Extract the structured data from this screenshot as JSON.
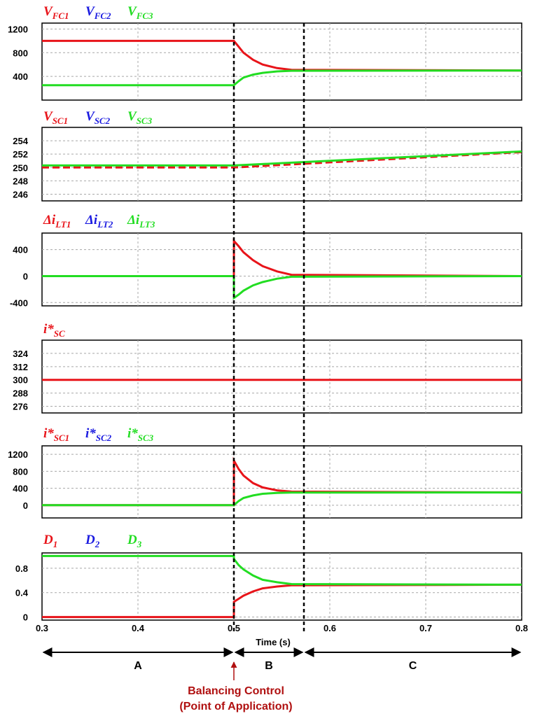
{
  "colors": {
    "red": "#e8141a",
    "blue": "#1a1ae0",
    "green": "#22dd22",
    "dark_red": "#b01010"
  },
  "chart_data": [
    {
      "type": "line",
      "legend": [
        {
          "sym": "V",
          "sub": "FC1",
          "color": "red"
        },
        {
          "sym": "V",
          "sub": "FC2",
          "color": "blue"
        },
        {
          "sym": "V",
          "sub": "FC3",
          "color": "green"
        }
      ],
      "ylim": [
        0,
        1300
      ],
      "yticks": [
        "1200",
        "800",
        "400"
      ],
      "ytick_values": [
        1200,
        800,
        400
      ],
      "series": [
        {
          "color": "red",
          "x": [
            0.3,
            0.5,
            0.505,
            0.51,
            0.52,
            0.53,
            0.545,
            0.56,
            0.8
          ],
          "y": [
            1000,
            1000,
            900,
            800,
            680,
            600,
            540,
            510,
            500
          ]
        },
        {
          "color": "green",
          "x": [
            0.3,
            0.5,
            0.505,
            0.51,
            0.52,
            0.53,
            0.545,
            0.56,
            0.8
          ],
          "y": [
            250,
            250,
            320,
            380,
            430,
            460,
            485,
            495,
            500
          ]
        }
      ]
    },
    {
      "type": "line",
      "legend": [
        {
          "sym": "V",
          "sub": "SC1",
          "color": "red"
        },
        {
          "sym": "V",
          "sub": "SC2",
          "color": "blue"
        },
        {
          "sym": "V",
          "sub": "SC3",
          "color": "green"
        }
      ],
      "ylim": [
        245,
        256
      ],
      "yticks": [
        "254",
        "252",
        "250",
        "248",
        "246"
      ],
      "ytick_values": [
        254,
        252,
        250,
        248,
        246
      ],
      "series": [
        {
          "color": "red",
          "dashed": true,
          "x": [
            0.3,
            0.5,
            0.8
          ],
          "y": [
            250,
            250,
            252.3
          ]
        },
        {
          "color": "green",
          "x": [
            0.3,
            0.5,
            0.8
          ],
          "y": [
            250.3,
            250.3,
            252.4
          ]
        }
      ]
    },
    {
      "type": "line",
      "legend": [
        {
          "sym": "Δi",
          "sub": "LT1",
          "color": "red"
        },
        {
          "sym": "Δi",
          "sub": "LT2",
          "color": "blue"
        },
        {
          "sym": "Δi",
          "sub": "LT3",
          "color": "green"
        }
      ],
      "ylim": [
        -450,
        650
      ],
      "yticks": [
        "400",
        "0",
        "-400"
      ],
      "ytick_values": [
        400,
        0,
        -400
      ],
      "series": [
        {
          "color": "red",
          "x": [
            0.3,
            0.5,
            0.5001,
            0.505,
            0.51,
            0.52,
            0.53,
            0.545,
            0.56,
            0.8
          ],
          "y": [
            0,
            0,
            530,
            450,
            360,
            240,
            150,
            70,
            20,
            0
          ]
        },
        {
          "color": "green",
          "x": [
            0.3,
            0.5,
            0.5001,
            0.505,
            0.51,
            0.52,
            0.53,
            0.545,
            0.56,
            0.8
          ],
          "y": [
            0,
            0,
            -330,
            -280,
            -220,
            -140,
            -90,
            -40,
            -10,
            0
          ]
        }
      ]
    },
    {
      "type": "line",
      "legend": [
        {
          "sym": "i*",
          "sub": "SC",
          "color": "red"
        }
      ],
      "ylim": [
        270,
        336
      ],
      "yticks": [
        "324",
        "312",
        "300",
        "288",
        "276"
      ],
      "ytick_values": [
        324,
        312,
        300,
        288,
        276
      ],
      "series": [
        {
          "color": "red",
          "x": [
            0.3,
            0.8
          ],
          "y": [
            300,
            300
          ]
        }
      ]
    },
    {
      "type": "line",
      "legend": [
        {
          "sym": "i*",
          "sub": "SC1",
          "color": "red"
        },
        {
          "sym": "i*",
          "sub": "SC2",
          "color": "blue"
        },
        {
          "sym": "i*",
          "sub": "SC3",
          "color": "green"
        }
      ],
      "ylim": [
        -300,
        1400
      ],
      "yticks": [
        "1200",
        "800",
        "400",
        "0"
      ],
      "ytick_values": [
        1200,
        800,
        400,
        0
      ],
      "series": [
        {
          "color": "red",
          "x": [
            0.3,
            0.5,
            0.5001,
            0.505,
            0.51,
            0.52,
            0.53,
            0.545,
            0.56,
            0.8
          ],
          "y": [
            0,
            0,
            1050,
            850,
            700,
            520,
            420,
            350,
            320,
            300
          ]
        },
        {
          "color": "green",
          "x": [
            0.3,
            0.5,
            0.505,
            0.51,
            0.52,
            0.53,
            0.545,
            0.56,
            0.8
          ],
          "y": [
            0,
            0,
            100,
            170,
            230,
            270,
            290,
            298,
            300
          ]
        }
      ]
    },
    {
      "type": "line",
      "legend": [
        {
          "sym": "D",
          "sub": "1",
          "color": "red"
        },
        {
          "sym": "D",
          "sub": "2",
          "color": "blue"
        },
        {
          "sym": "D",
          "sub": "3",
          "color": "green"
        }
      ],
      "ylim": [
        -0.05,
        1.05
      ],
      "yticks": [
        "0.8",
        "0.4",
        "0"
      ],
      "ytick_values": [
        0.8,
        0.4,
        0
      ],
      "series": [
        {
          "color": "red",
          "x": [
            0.3,
            0.5,
            0.5001,
            0.505,
            0.51,
            0.52,
            0.53,
            0.545,
            0.56,
            0.8
          ],
          "y": [
            0,
            0,
            0.25,
            0.3,
            0.35,
            0.42,
            0.47,
            0.5,
            0.52,
            0.53
          ]
        },
        {
          "color": "green",
          "x": [
            0.3,
            0.5,
            0.5001,
            0.505,
            0.51,
            0.52,
            0.53,
            0.545,
            0.56,
            0.8
          ],
          "y": [
            1,
            1,
            0.95,
            0.85,
            0.78,
            0.68,
            0.61,
            0.57,
            0.54,
            0.53
          ]
        }
      ]
    }
  ],
  "x_axis": {
    "xlim": [
      0.3,
      0.8
    ],
    "ticks": [
      "0.3",
      "0.4",
      "0.5",
      "0.6",
      "0.7",
      "0.8"
    ],
    "tick_values": [
      0.3,
      0.4,
      0.5,
      0.6,
      0.7,
      0.8
    ],
    "label": "Time (s)",
    "vlines": [
      0.5,
      0.573
    ]
  },
  "regions": [
    {
      "label": "A",
      "from": 0.3,
      "to": 0.5
    },
    {
      "label": "B",
      "from": 0.5,
      "to": 0.573
    },
    {
      "label": "C",
      "from": 0.573,
      "to": 0.8
    }
  ],
  "annotation": {
    "line1": "Balancing Control",
    "line2": "(Point of Application)",
    "at": 0.5
  }
}
